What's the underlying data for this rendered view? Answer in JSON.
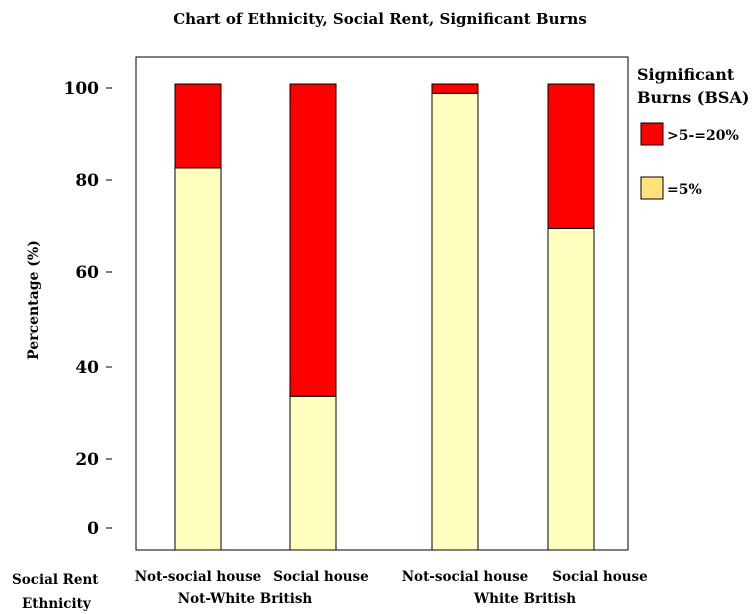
{
  "chart_data": {
    "type": "bar",
    "stacked": true,
    "title": "Chart of Ethnicity, Social Rent, Significant Burns",
    "ylabel": "Percentage (%)",
    "ylim": [
      0,
      100
    ],
    "yticks": [
      "0",
      "20",
      "40",
      "60",
      "80",
      "100"
    ],
    "yticks_values": [
      0,
      20,
      40,
      60,
      80,
      100
    ],
    "categories": [
      "Not-social house",
      "Social house",
      "Not-social house",
      "Social house"
    ],
    "groups": [
      "Not-White British",
      "White British"
    ],
    "group_of_category": [
      0,
      0,
      1,
      1
    ],
    "row_labels": {
      "categories_axis": "Social Rent",
      "groups_axis": "Ethnicity"
    },
    "legend": {
      "title_line1": "Significant",
      "title_line2": "Burns (BSA)",
      "position": "right"
    },
    "series": [
      {
        "name": "=5%",
        "values": [
          82,
          33,
          98,
          69
        ],
        "color": "#FFFFC0"
      },
      {
        "name": ">5-=20%",
        "values": [
          18,
          67,
          2,
          31
        ],
        "color": "#FF0000"
      }
    ],
    "grid": false
  }
}
